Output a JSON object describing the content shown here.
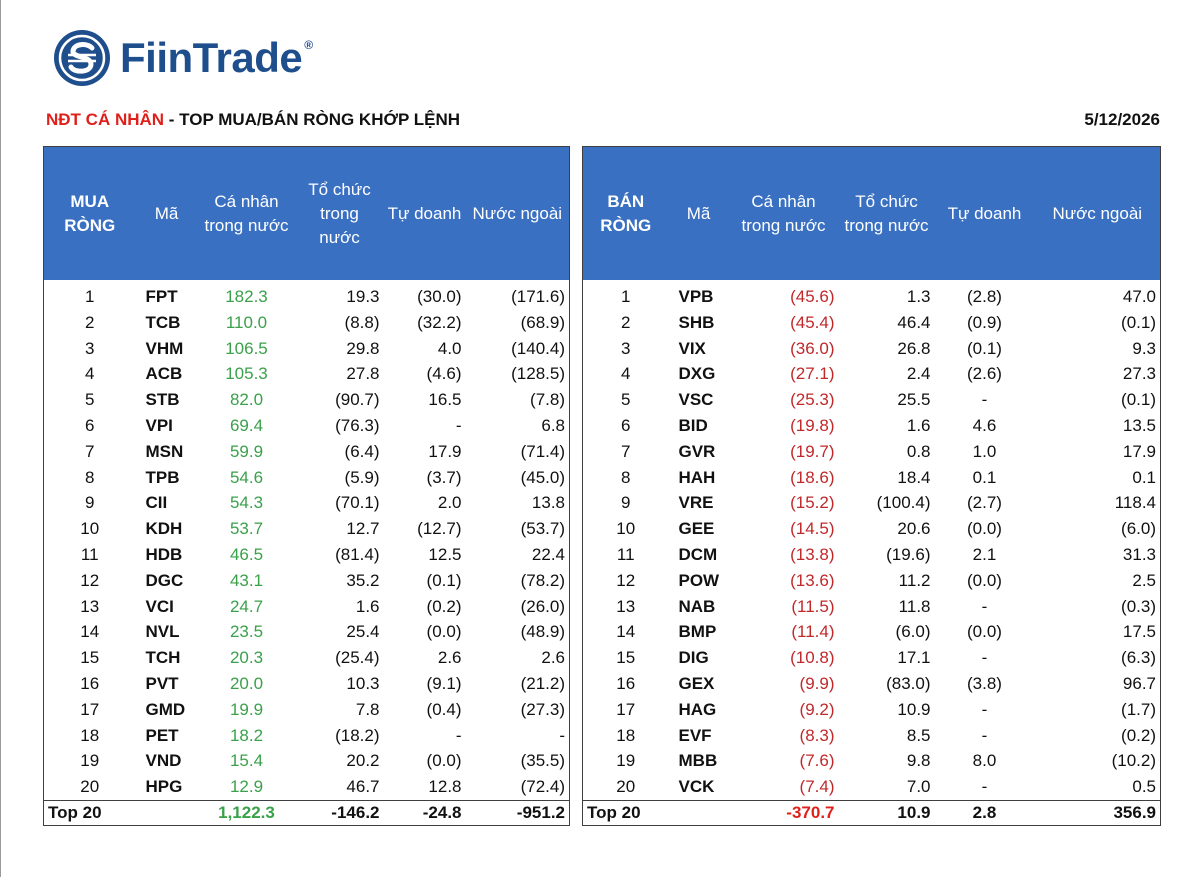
{
  "brand": {
    "name": "FiinTrade",
    "registered": "®"
  },
  "title": {
    "highlight": "NĐT CÁ NHÂN",
    "rest": " - TOP MUA/BÁN RÒNG KHỚP LỆNH"
  },
  "date": "5/12/2026",
  "colors": {
    "header_bg": "#3a70c2",
    "positive": "#3aa14a",
    "negative": "#c0282a",
    "title_red": "#e0201b",
    "brand_blue": "#1f4e8c"
  },
  "buy": {
    "headers": {
      "side": "MUA RÒNG",
      "code": "Mã",
      "individual": "Cá nhân trong nước",
      "institution": "Tổ chức trong nước",
      "proprietary": "Tự doanh",
      "foreign": "Nước ngoài"
    },
    "rows": [
      {
        "rank": "1",
        "code": "FPT",
        "individual": "182.3",
        "institution": "19.3",
        "proprietary": "(30.0)",
        "foreign": "(171.6)"
      },
      {
        "rank": "2",
        "code": "TCB",
        "individual": "110.0",
        "institution": "(8.8)",
        "proprietary": "(32.2)",
        "foreign": "(68.9)"
      },
      {
        "rank": "3",
        "code": "VHM",
        "individual": "106.5",
        "institution": "29.8",
        "proprietary": "4.0",
        "foreign": "(140.4)"
      },
      {
        "rank": "4",
        "code": "ACB",
        "individual": "105.3",
        "institution": "27.8",
        "proprietary": "(4.6)",
        "foreign": "(128.5)"
      },
      {
        "rank": "5",
        "code": "STB",
        "individual": "82.0",
        "institution": "(90.7)",
        "proprietary": "16.5",
        "foreign": "(7.8)"
      },
      {
        "rank": "6",
        "code": "VPI",
        "individual": "69.4",
        "institution": "(76.3)",
        "proprietary": "-",
        "foreign": "6.8"
      },
      {
        "rank": "7",
        "code": "MSN",
        "individual": "59.9",
        "institution": "(6.4)",
        "proprietary": "17.9",
        "foreign": "(71.4)"
      },
      {
        "rank": "8",
        "code": "TPB",
        "individual": "54.6",
        "institution": "(5.9)",
        "proprietary": "(3.7)",
        "foreign": "(45.0)"
      },
      {
        "rank": "9",
        "code": "CII",
        "individual": "54.3",
        "institution": "(70.1)",
        "proprietary": "2.0",
        "foreign": "13.8"
      },
      {
        "rank": "10",
        "code": "KDH",
        "individual": "53.7",
        "institution": "12.7",
        "proprietary": "(12.7)",
        "foreign": "(53.7)"
      },
      {
        "rank": "11",
        "code": "HDB",
        "individual": "46.5",
        "institution": "(81.4)",
        "proprietary": "12.5",
        "foreign": "22.4"
      },
      {
        "rank": "12",
        "code": "DGC",
        "individual": "43.1",
        "institution": "35.2",
        "proprietary": "(0.1)",
        "foreign": "(78.2)"
      },
      {
        "rank": "13",
        "code": "VCI",
        "individual": "24.7",
        "institution": "1.6",
        "proprietary": "(0.2)",
        "foreign": "(26.0)"
      },
      {
        "rank": "14",
        "code": "NVL",
        "individual": "23.5",
        "institution": "25.4",
        "proprietary": "(0.0)",
        "foreign": "(48.9)"
      },
      {
        "rank": "15",
        "code": "TCH",
        "individual": "20.3",
        "institution": "(25.4)",
        "proprietary": "2.6",
        "foreign": "2.6"
      },
      {
        "rank": "16",
        "code": "PVT",
        "individual": "20.0",
        "institution": "10.3",
        "proprietary": "(9.1)",
        "foreign": "(21.2)"
      },
      {
        "rank": "17",
        "code": "GMD",
        "individual": "19.9",
        "institution": "7.8",
        "proprietary": "(0.4)",
        "foreign": "(27.3)"
      },
      {
        "rank": "18",
        "code": "PET",
        "individual": "18.2",
        "institution": "(18.2)",
        "proprietary": "-",
        "foreign": "-"
      },
      {
        "rank": "19",
        "code": "VND",
        "individual": "15.4",
        "institution": "20.2",
        "proprietary": "(0.0)",
        "foreign": "(35.5)"
      },
      {
        "rank": "20",
        "code": "HPG",
        "individual": "12.9",
        "institution": "46.7",
        "proprietary": "12.8",
        "foreign": "(72.4)"
      }
    ],
    "total": {
      "label": "Top 20",
      "individual": "1,122.3",
      "institution": "-146.2",
      "proprietary": "-24.8",
      "foreign": "-951.2"
    }
  },
  "sell": {
    "headers": {
      "side": "BÁN RÒNG",
      "code": "Mã",
      "individual": "Cá nhân trong nước",
      "institution": "Tổ chức trong nước",
      "proprietary": "Tự doanh",
      "foreign": "Nước ngoài"
    },
    "rows": [
      {
        "rank": "1",
        "code": "VPB",
        "individual": "(45.6)",
        "institution": "1.3",
        "proprietary": "(2.8)",
        "foreign": "47.0"
      },
      {
        "rank": "2",
        "code": "SHB",
        "individual": "(45.4)",
        "institution": "46.4",
        "proprietary": "(0.9)",
        "foreign": "(0.1)"
      },
      {
        "rank": "3",
        "code": "VIX",
        "individual": "(36.0)",
        "institution": "26.8",
        "proprietary": "(0.1)",
        "foreign": "9.3"
      },
      {
        "rank": "4",
        "code": "DXG",
        "individual": "(27.1)",
        "institution": "2.4",
        "proprietary": "(2.6)",
        "foreign": "27.3"
      },
      {
        "rank": "5",
        "code": "VSC",
        "individual": "(25.3)",
        "institution": "25.5",
        "proprietary": "-",
        "foreign": "(0.1)"
      },
      {
        "rank": "6",
        "code": "BID",
        "individual": "(19.8)",
        "institution": "1.6",
        "proprietary": "4.6",
        "foreign": "13.5"
      },
      {
        "rank": "7",
        "code": "GVR",
        "individual": "(19.7)",
        "institution": "0.8",
        "proprietary": "1.0",
        "foreign": "17.9"
      },
      {
        "rank": "8",
        "code": "HAH",
        "individual": "(18.6)",
        "institution": "18.4",
        "proprietary": "0.1",
        "foreign": "0.1"
      },
      {
        "rank": "9",
        "code": "VRE",
        "individual": "(15.2)",
        "institution": "(100.4)",
        "proprietary": "(2.7)",
        "foreign": "118.4"
      },
      {
        "rank": "10",
        "code": "GEE",
        "individual": "(14.5)",
        "institution": "20.6",
        "proprietary": "(0.0)",
        "foreign": "(6.0)"
      },
      {
        "rank": "11",
        "code": "DCM",
        "individual": "(13.8)",
        "institution": "(19.6)",
        "proprietary": "2.1",
        "foreign": "31.3"
      },
      {
        "rank": "12",
        "code": "POW",
        "individual": "(13.6)",
        "institution": "11.2",
        "proprietary": "(0.0)",
        "foreign": "2.5"
      },
      {
        "rank": "13",
        "code": "NAB",
        "individual": "(11.5)",
        "institution": "11.8",
        "proprietary": "-",
        "foreign": "(0.3)"
      },
      {
        "rank": "14",
        "code": "BMP",
        "individual": "(11.4)",
        "institution": "(6.0)",
        "proprietary": "(0.0)",
        "foreign": "17.5"
      },
      {
        "rank": "15",
        "code": "DIG",
        "individual": "(10.8)",
        "institution": "17.1",
        "proprietary": "-",
        "foreign": "(6.3)"
      },
      {
        "rank": "16",
        "code": "GEX",
        "individual": "(9.9)",
        "institution": "(83.0)",
        "proprietary": "(3.8)",
        "foreign": "96.7"
      },
      {
        "rank": "17",
        "code": "HAG",
        "individual": "(9.2)",
        "institution": "10.9",
        "proprietary": "-",
        "foreign": "(1.7)"
      },
      {
        "rank": "18",
        "code": "EVF",
        "individual": "(8.3)",
        "institution": "8.5",
        "proprietary": "-",
        "foreign": "(0.2)"
      },
      {
        "rank": "19",
        "code": "MBB",
        "individual": "(7.6)",
        "institution": "9.8",
        "proprietary": "8.0",
        "foreign": "(10.2)"
      },
      {
        "rank": "20",
        "code": "VCK",
        "individual": "(7.4)",
        "institution": "7.0",
        "proprietary": "-",
        "foreign": "0.5"
      }
    ],
    "total": {
      "label": "Top 20",
      "individual": "-370.7",
      "institution": "10.9",
      "proprietary": "2.8",
      "foreign": "356.9"
    }
  }
}
